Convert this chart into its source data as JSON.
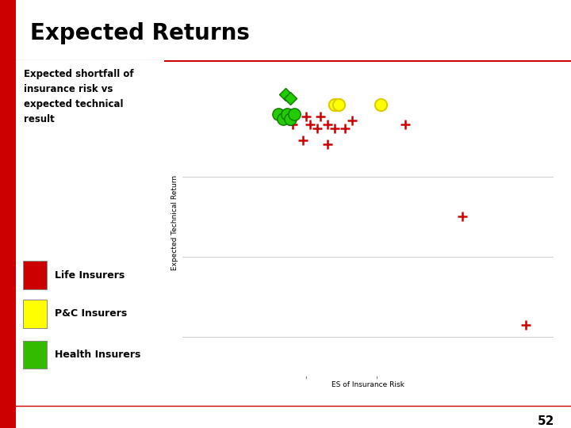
{
  "title": "Expected Returns",
  "subtitle": "Expected shortfall of\ninsurance risk vs\nexpected technical\nresult",
  "xlabel": "ES of Insurance Risk",
  "ylabel": "Expected Technical Return",
  "page_num": "52",
  "legend": [
    {
      "label": "Life Insurers",
      "color": "#cc0000"
    },
    {
      "label": "P&C Insurers",
      "color": "#ffff00"
    },
    {
      "label": "Health Insurers",
      "color": "#33bb00"
    }
  ],
  "red_plus_cluster": {
    "x": [
      0.31,
      0.36,
      0.38,
      0.41,
      0.43,
      0.46,
      0.48,
      0.34,
      0.41,
      0.35,
      0.39
    ],
    "y": [
      0.88,
      0.88,
      0.87,
      0.88,
      0.87,
      0.87,
      0.89,
      0.84,
      0.83,
      0.9,
      0.9
    ]
  },
  "red_plus_right": {
    "x": [
      0.63
    ],
    "y": [
      0.88
    ]
  },
  "red_plus_mid": {
    "x": [
      0.79
    ],
    "y": [
      0.65
    ]
  },
  "red_plus_far": {
    "x": [
      0.97
    ],
    "y": [
      0.38
    ]
  },
  "yellow_rings": {
    "x": [
      0.43,
      0.44,
      0.56
    ],
    "y": [
      0.93,
      0.93,
      0.93
    ]
  },
  "green_diamonds": {
    "x": [
      0.29,
      0.305
    ],
    "y": [
      0.955,
      0.945
    ]
  },
  "green_blobs": {
    "x": [
      0.27,
      0.285,
      0.295,
      0.305,
      0.315
    ],
    "y": [
      0.905,
      0.895,
      0.905,
      0.895,
      0.905
    ]
  },
  "xlim": [
    0.0,
    1.05
  ],
  "ylim": [
    0.25,
    1.02
  ],
  "ytick_positions": [
    0.75,
    0.55,
    0.35
  ],
  "xtick_positions": [
    0.35,
    0.55
  ],
  "figsize": [
    7.2,
    5.4
  ],
  "dpi": 100
}
